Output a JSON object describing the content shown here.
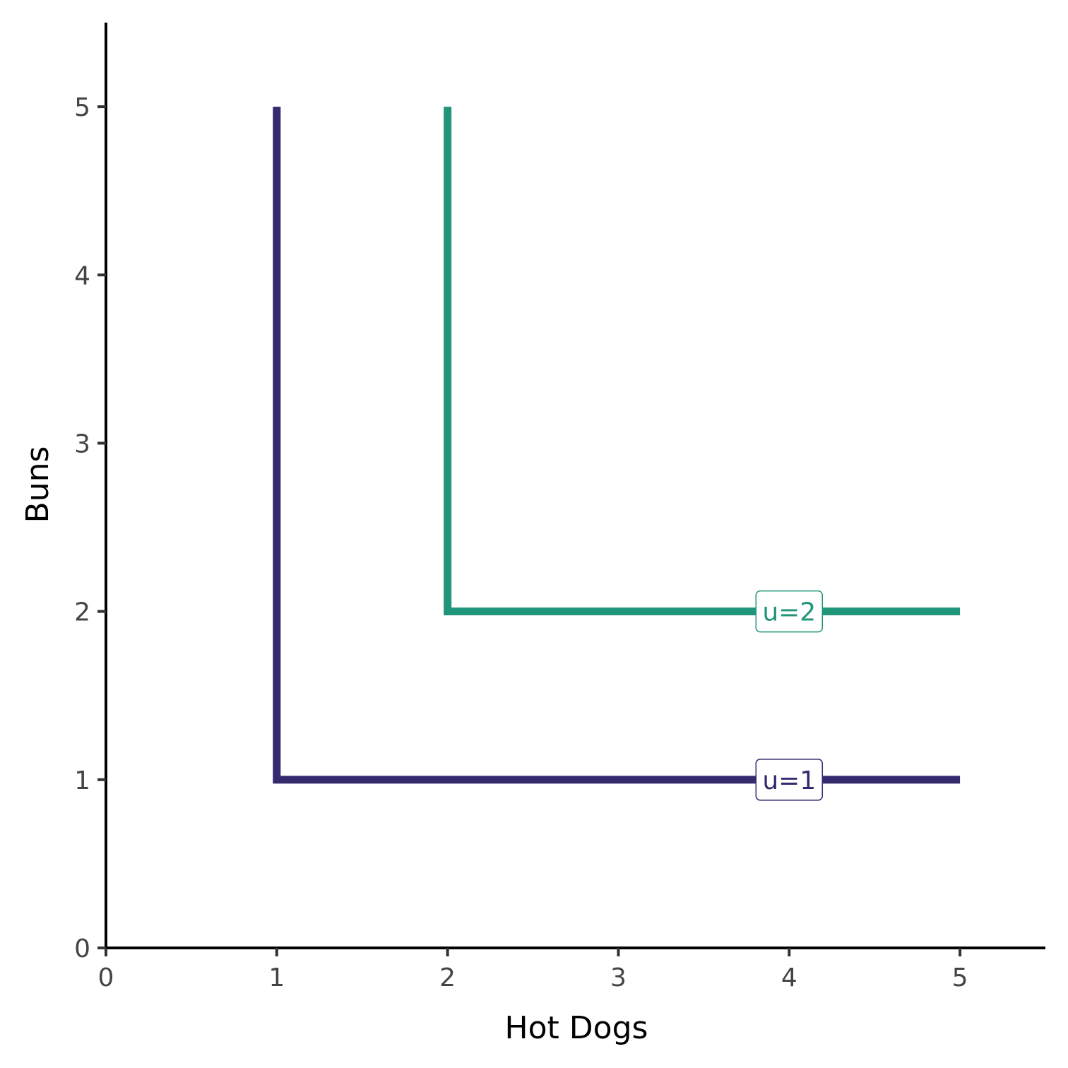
{
  "chart_data": {
    "type": "line",
    "title": "",
    "xlabel": "Hot Dogs",
    "ylabel": "Buns",
    "xlim": [
      0,
      5.5
    ],
    "ylim": [
      0,
      5.5
    ],
    "x_ticks": [
      0,
      1,
      2,
      3,
      4,
      5
    ],
    "y_ticks": [
      0,
      1,
      2,
      3,
      4,
      5
    ],
    "grid": false,
    "legend": "none",
    "series": [
      {
        "name": "u=1",
        "color": "#352A6E",
        "points": [
          [
            1,
            5
          ],
          [
            1,
            1
          ],
          [
            5,
            1
          ]
        ],
        "label": {
          "text": "u=1",
          "x": 4,
          "y": 1
        }
      },
      {
        "name": "u=2",
        "color": "#21957A",
        "points": [
          [
            2,
            5
          ],
          [
            2,
            2
          ],
          [
            5,
            2
          ]
        ],
        "label": {
          "text": "u=2",
          "x": 4,
          "y": 2
        }
      }
    ]
  }
}
